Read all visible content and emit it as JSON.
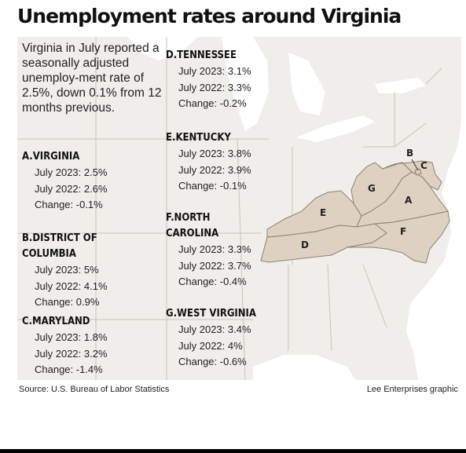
{
  "title": "Unemployment rates around Virginia",
  "intro": "Virginia in July reported a seasonally adjusted unemploy-ment rate of 2.5%, down 0.1% from 12 months previous.",
  "states": [
    {
      "letter": "A.",
      "name": "VIRGINIA",
      "july_2023": "July 2023: 2.5%",
      "july_2022": "July 2022: 2.6%",
      "change": "Change: -0.1%"
    },
    {
      "letter": "B.",
      "name": "DISTRICT OF COLUMBIA",
      "july_2023": "July 2023: 5%",
      "july_2022": "July 2022: 4.1%",
      "change": "Change: 0.9%"
    },
    {
      "letter": "C.",
      "name": "MARYLAND",
      "july_2023": "July 2023: 1.8%",
      "july_2022": "July 2022: 3.2%",
      "change": "Change: -1.4%"
    },
    {
      "letter": "D.",
      "name": "TENNESSEE",
      "july_2023": "July 2023: 3.1%",
      "july_2022": "July 2022: 3.3%",
      "change": "Change: -0.2%"
    },
    {
      "letter": "E.",
      "name": "KENTUCKY",
      "july_2023": "July 2023: 3.8%",
      "july_2022": "July 2022: 3.9%",
      "change": "Change: -0.1%"
    },
    {
      "letter": "F.",
      "name": "NORTH CAROLINA",
      "july_2023": "July 2023: 3.3%",
      "july_2022": "July 2022: 3.7%",
      "change": "Change: -0.4%"
    },
    {
      "letter": "G.",
      "name": "WEST VIRGINIA",
      "july_2023": "July 2023: 3.4%",
      "july_2022": "July 2022: 4%",
      "change": "Change: -0.6%"
    }
  ],
  "map_labels": {
    "a": "A",
    "b": "B",
    "c": "C",
    "d": "D",
    "e": "E",
    "f": "F",
    "g": "G"
  },
  "colors": {
    "highlight": "#ddd2c0",
    "land": "#f0eeea",
    "water": "#ffffff",
    "border": "#c8c4bc",
    "highlight_border": "#8a8277"
  },
  "source": "Source: U.S. Bureau of Labor Statistics",
  "credit": "Lee Enterprises graphic"
}
